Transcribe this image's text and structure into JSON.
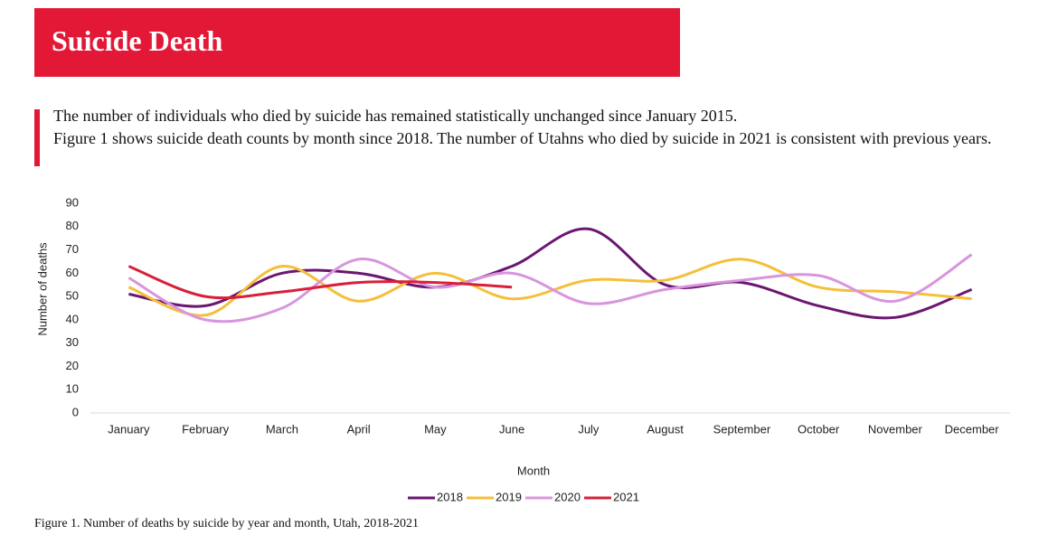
{
  "header": {
    "title": "Suicide Death"
  },
  "paragraphs": [
    "The number of individuals who died by suicide has remained statistically unchanged since January 2015.",
    "Figure 1 shows suicide death counts by month since 2018. The number of Utahns who died by suicide in 2021 is consistent with previous years."
  ],
  "chart_data": {
    "type": "line",
    "categories": [
      "January",
      "February",
      "March",
      "April",
      "May",
      "June",
      "July",
      "August",
      "September",
      "October",
      "November",
      "December"
    ],
    "series": [
      {
        "name": "2018",
        "color": "#6b1670",
        "values": [
          51,
          46,
          60,
          60,
          54,
          63,
          79,
          55,
          56,
          46,
          41,
          53
        ]
      },
      {
        "name": "2019",
        "color": "#f5bf3a",
        "values": [
          54,
          42,
          63,
          48,
          60,
          49,
          57,
          57,
          66,
          54,
          52,
          49
        ]
      },
      {
        "name": "2020",
        "color": "#d895de",
        "values": [
          58,
          40,
          45,
          66,
          54,
          60,
          47,
          53,
          57,
          59,
          48,
          68
        ]
      },
      {
        "name": "2021",
        "color": "#d8203a",
        "values": [
          63,
          50,
          52,
          56,
          56,
          54,
          null,
          null,
          null,
          null,
          null,
          null
        ]
      }
    ],
    "xlabel": "Month",
    "ylabel": "Number of deaths",
    "ylim": [
      0,
      90
    ],
    "yticks": [
      0,
      10,
      20,
      30,
      40,
      50,
      60,
      70,
      80,
      90
    ],
    "grid": false,
    "smooth": true,
    "legend": "bottom"
  },
  "caption": "Figure 1. Number of deaths by suicide by year and month, Utah, 2018-2021"
}
